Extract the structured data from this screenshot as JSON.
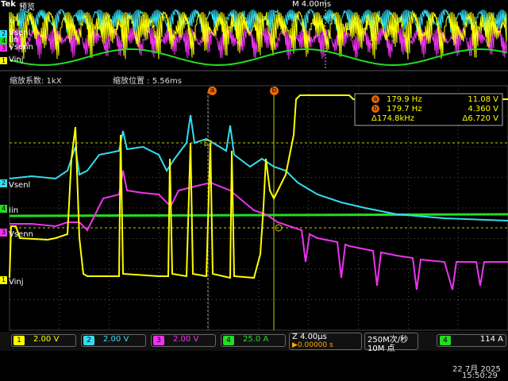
{
  "header": {
    "brand": "Tek",
    "mode": "预览",
    "timebase": "M 4.00ms"
  },
  "overview": {
    "channels": [
      {
        "number": "2",
        "label": "Vsenl"
      },
      {
        "number": "4",
        "label": "Iin"
      },
      {
        "number": "3",
        "label": "Vsenn"
      },
      {
        "number": "1",
        "label": "Vinj"
      }
    ]
  },
  "zoom": {
    "factor": "缩放系数: 1kX",
    "position": "缩放位置 : 5.56ms"
  },
  "cursors": {
    "a": "a",
    "b": "b"
  },
  "measurements": {
    "rows": [
      {
        "marker": "a",
        "frequency": "179.9 Hz",
        "voltage": "11.08 V"
      },
      {
        "marker": "b",
        "frequency": "179.7 Hz",
        "voltage": "4.360 V"
      },
      {
        "frequency": "Δ174.8kHz",
        "voltage": "Δ6.720 V"
      }
    ]
  },
  "main_labels": [
    {
      "number": "2",
      "label": "Vsenl"
    },
    {
      "number": "4",
      "label": "Iin"
    },
    {
      "number": "3",
      "label": "Vsenn"
    },
    {
      "number": "1",
      "label": "Vinj"
    }
  ],
  "footer": {
    "channels": [
      {
        "number": "1",
        "scale": "2.00 V"
      },
      {
        "number": "2",
        "scale": "2.00 V"
      },
      {
        "number": "3",
        "scale": "2.00 V"
      },
      {
        "number": "4",
        "scale": "25.0 A"
      }
    ],
    "horizontal": "Z 4.00µs",
    "delay": "▶0.00000 s",
    "sample_rate": "250M次/秒",
    "record_length": "10M 点",
    "trigger_channel": "4",
    "trigger_level": "114 A",
    "date": "22 7月 2025",
    "time": "15:50:29"
  }
}
